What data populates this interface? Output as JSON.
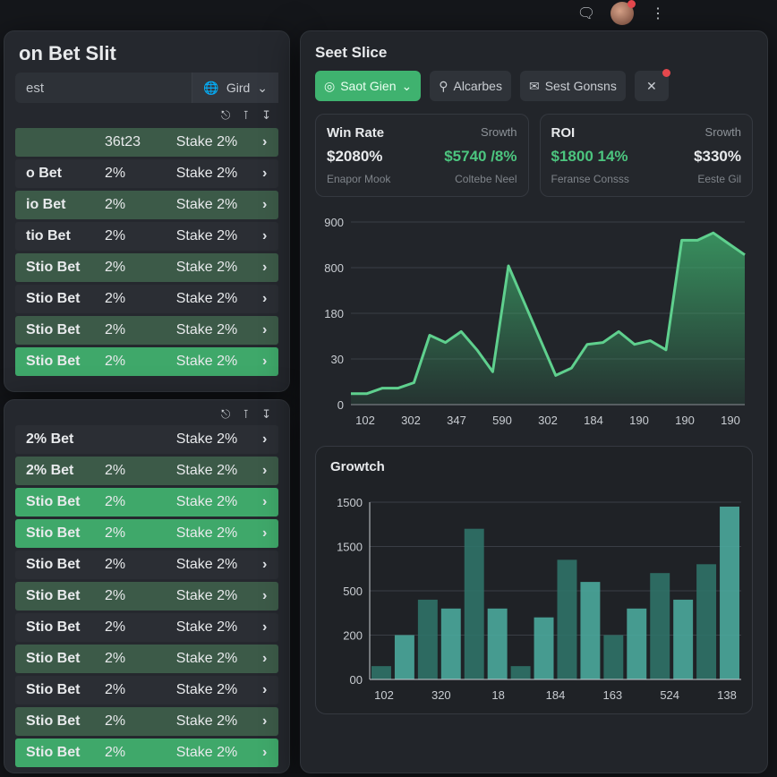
{
  "topbar": {
    "icons": [
      "chat-icon",
      "avatar",
      "more-vertical-icon"
    ]
  },
  "left_panel": {
    "title": "on Bet Slit",
    "search": {
      "value": "est",
      "placeholder": ""
    },
    "filter_label": "Gird",
    "toolbar_icons": [
      "stamp-icon",
      "filter-icon",
      "download-icon"
    ],
    "rows": [
      {
        "name": "",
        "pct": "36t23",
        "stake": "Stake 2%",
        "style": "muted"
      },
      {
        "name": "o Bet",
        "pct": "2%",
        "stake": "Stake 2%",
        "style": "dark"
      },
      {
        "name": "io Bet",
        "pct": "2%",
        "stake": "Stake 2%",
        "style": "muted"
      },
      {
        "name": "tio Bet",
        "pct": "2%",
        "stake": "Stake 2%",
        "style": "dark"
      },
      {
        "name": "Stio Bet",
        "pct": "2%",
        "stake": "Stake 2%",
        "style": "muted"
      },
      {
        "name": "Stio Bet",
        "pct": "2%",
        "stake": "Stake 2%",
        "style": "dark"
      },
      {
        "name": "Stio Bet",
        "pct": "2%",
        "stake": "Stake 2%",
        "style": "muted"
      },
      {
        "name": "Stio Bet",
        "pct": "2%",
        "stake": "Stake 2%",
        "style": "bright"
      }
    ]
  },
  "left_panel_2": {
    "toolbar_icons": [
      "stamp-icon",
      "filter-icon",
      "download-icon"
    ],
    "rows": [
      {
        "name": "2% Bet",
        "pct": "",
        "stake": "Stake 2%",
        "style": "dark"
      },
      {
        "name": "2% Bet",
        "pct": "2%",
        "stake": "Stake 2%",
        "style": "muted"
      },
      {
        "name": "Stio Bet",
        "pct": "2%",
        "stake": "Stake 2%",
        "style": "bright"
      },
      {
        "name": "Stio Bet",
        "pct": "2%",
        "stake": "Stake 2%",
        "style": "bright"
      },
      {
        "name": "Stio Bet",
        "pct": "2%",
        "stake": "Stake 2%",
        "style": "dark"
      },
      {
        "name": "Stio Bet",
        "pct": "2%",
        "stake": "Stake 2%",
        "style": "muted"
      },
      {
        "name": "Stio Bet",
        "pct": "2%",
        "stake": "Stake 2%",
        "style": "dark"
      },
      {
        "name": "Stio Bet",
        "pct": "2%",
        "stake": "Stake 2%",
        "style": "muted"
      },
      {
        "name": "Stio Bet",
        "pct": "2%",
        "stake": "Stake 2%",
        "style": "dark"
      },
      {
        "name": "Stio Bet",
        "pct": "2%",
        "stake": "Stake 2%",
        "style": "muted"
      },
      {
        "name": "Stio Bet",
        "pct": "2%",
        "stake": "Stake 2%",
        "style": "bright"
      }
    ]
  },
  "right_panel": {
    "title": "Seet Slice",
    "buttons": {
      "primary": "Saot Gien",
      "second": "Alcarbes",
      "third": "Sest Gonsns"
    },
    "cards": [
      {
        "label": "Win Rate",
        "sub": "Srowth",
        "value": "$2080%",
        "note": "Enapor Mook",
        "value2": "$5740 /8%",
        "note2": "Coltebe Neel"
      },
      {
        "label": "ROI",
        "sub": "Srowth",
        "value": "$1800 14%",
        "note": "Feranse Consss",
        "value2": "$330%",
        "note2": "Eeste Gil"
      }
    ]
  },
  "colors": {
    "accent": "#3fb26f",
    "bar": "#4aa89c",
    "badge": "#e5484d",
    "background": "#15171b"
  },
  "chart_data": [
    {
      "type": "area",
      "title": "",
      "y_ticks": [
        "0",
        "30",
        "180",
        "800",
        "900"
      ],
      "x_ticks": [
        "102",
        "302",
        "347",
        "590",
        "302",
        "184",
        "190",
        "190",
        "190"
      ],
      "ylim": [
        0,
        1000
      ],
      "grid": true,
      "values": [
        60,
        60,
        90,
        90,
        120,
        380,
        340,
        400,
        300,
        180,
        760,
        560,
        360,
        160,
        200,
        330,
        340,
        400,
        330,
        350,
        300,
        900,
        900,
        940,
        880,
        820
      ]
    },
    {
      "type": "bar",
      "title": "Growtch",
      "y_ticks": [
        "00",
        "200",
        "500",
        "1500",
        "1500"
      ],
      "x_ticks": [
        "102",
        "320",
        "18",
        "184",
        "163",
        "524",
        "138"
      ],
      "ylim": [
        0,
        2000
      ],
      "grid": true,
      "values": [
        150,
        500,
        900,
        800,
        1700,
        800,
        150,
        700,
        1350,
        1100,
        500,
        800,
        1200,
        900,
        1300,
        1950
      ]
    }
  ]
}
